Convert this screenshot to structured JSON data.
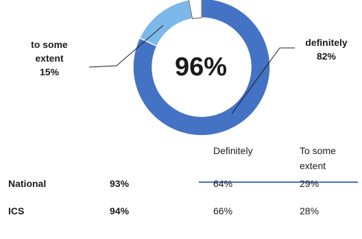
{
  "chart_data": {
    "type": "pie",
    "donut": true,
    "center_label": "96%",
    "slices": [
      {
        "label": "definitely",
        "value": 82,
        "value_label": "82%",
        "color": "#4472c4"
      },
      {
        "label": "to some extent",
        "value": 15,
        "value_label": "15%",
        "color": "#7db8ea"
      },
      {
        "label": "",
        "value": 3,
        "color": "#ffffff"
      }
    ]
  },
  "table": {
    "columns": [
      "Definitely",
      "To some extent"
    ],
    "rows": [
      {
        "label": "National",
        "total": "93%",
        "values": [
          "64%",
          "29%"
        ]
      },
      {
        "label": "ICS",
        "total": "94%",
        "values": [
          "66%",
          "28%"
        ]
      }
    ]
  }
}
